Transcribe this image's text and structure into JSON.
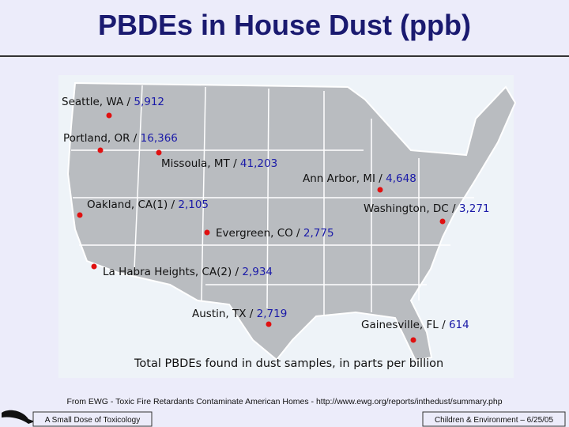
{
  "title": "PBDEs in House Dust (ppb)",
  "map": {
    "locations": [
      {
        "label": "Seattle, WA /",
        "value": "5,912"
      },
      {
        "label": "Portland, OR /",
        "value": "16,366"
      },
      {
        "label": "Missoula, MT /",
        "value": "41,203"
      },
      {
        "label": "Ann Arbor, MI /",
        "value": "4,648"
      },
      {
        "label": "Oakland, CA(1) /",
        "value": "2,105"
      },
      {
        "label": "Washington, DC /",
        "value": "3,271"
      },
      {
        "label": "Evergreen, CO /",
        "value": "2,775"
      },
      {
        "label": "La Habra Heights, CA(2) /",
        "value": "2,934"
      },
      {
        "label": "Austin, TX /",
        "value": "2,719"
      },
      {
        "label": "Gainesville, FL /",
        "value": "614"
      }
    ],
    "caption": "Total PBDEs found in dust samples, in parts per billion"
  },
  "source": "From EWG - Toxic Fire Retardants Contaminate American Homes - http://www.ewg.org/reports/inthedust/summary.php",
  "footer": {
    "left": "A Small Dose of Toxicology",
    "right": "Children & Environment – 6/25/05"
  }
}
